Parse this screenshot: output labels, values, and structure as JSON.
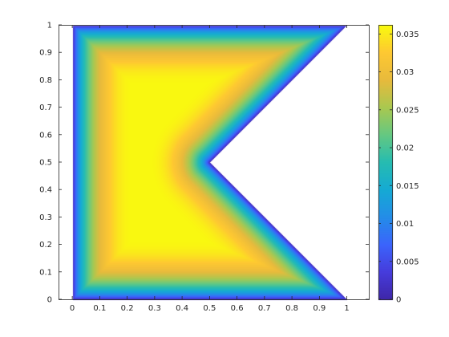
{
  "chart_data": {
    "type": "heatmap",
    "title": "",
    "xlabel": "",
    "ylabel": "",
    "xlim": [
      -0.05,
      1.08
    ],
    "ylim": [
      0,
      1
    ],
    "x_ticks": [
      "0",
      "0.1",
      "0.2",
      "0.3",
      "0.4",
      "0.5",
      "0.6",
      "0.7",
      "0.8",
      "0.9",
      "1"
    ],
    "y_ticks": [
      "0",
      "0.1",
      "0.2",
      "0.3",
      "0.4",
      "0.5",
      "0.6",
      "0.7",
      "0.8",
      "0.9",
      "1"
    ],
    "domain_polygon": [
      [
        0,
        0
      ],
      [
        1,
        0
      ],
      [
        0.5,
        0.5
      ],
      [
        1,
        1
      ],
      [
        0,
        1
      ]
    ],
    "peak": {
      "x": 0.28,
      "y": 0.5,
      "value": 0.036
    },
    "colorbar": {
      "min": 0,
      "max": 0.0362,
      "ticks": [
        "0",
        "0.005",
        "0.01",
        "0.015",
        "0.02",
        "0.025",
        "0.03",
        "0.035"
      ],
      "colormap": "parula"
    },
    "grid": false,
    "legend": "none"
  }
}
